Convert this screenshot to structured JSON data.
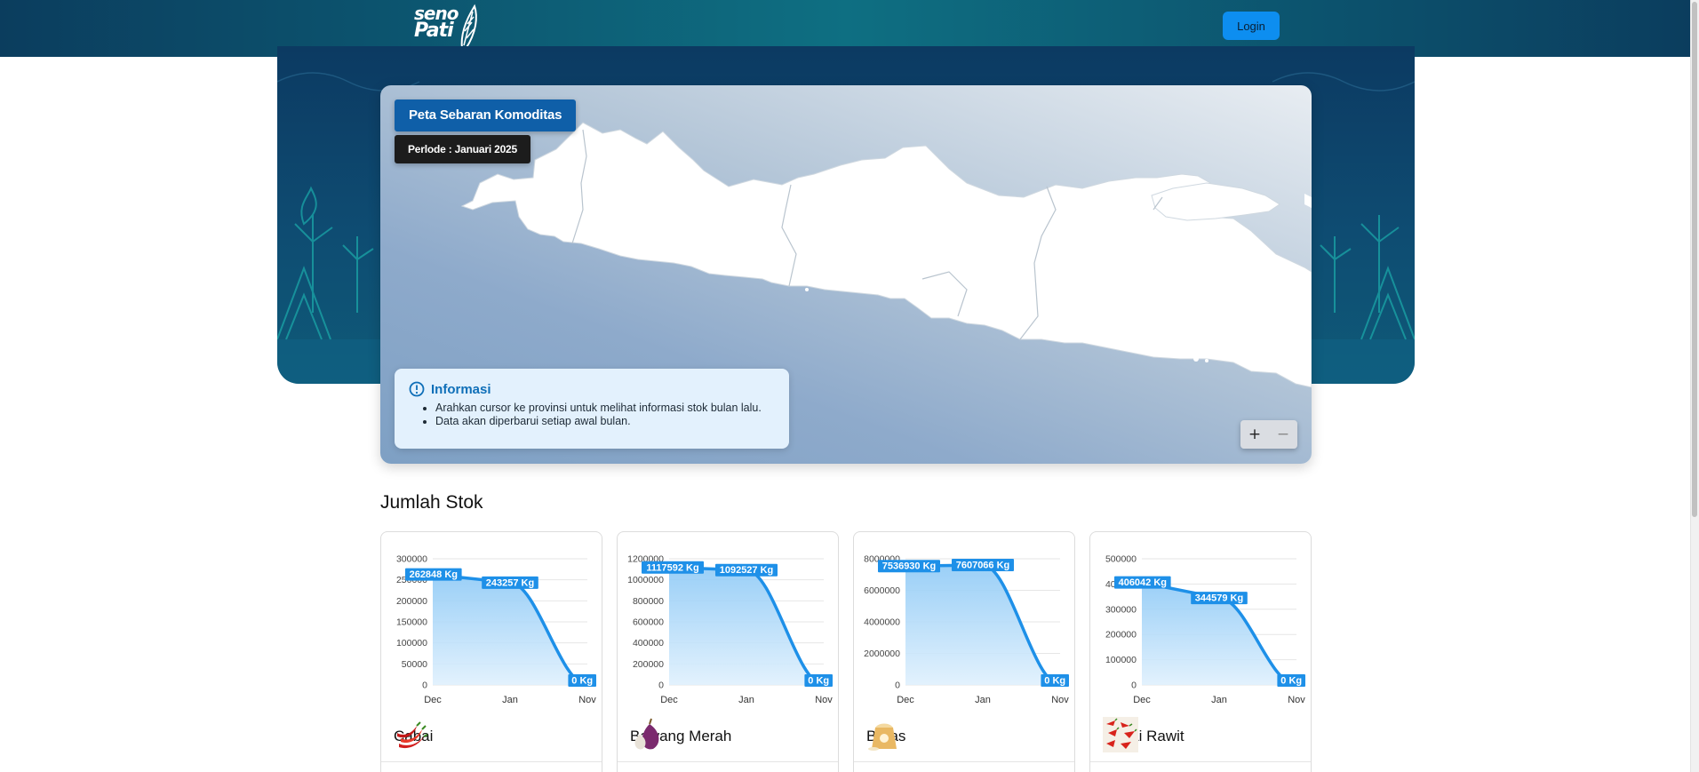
{
  "header": {
    "logo_line1": "seno",
    "logo_line2": "Pati",
    "login_label": "Login"
  },
  "map": {
    "title": "Peta Sebaran Komoditas",
    "period": "Perlode : Januari 2025",
    "info": {
      "title": "Informasi",
      "items": [
        "Arahkan cursor ke provinsi untuk melihat informasi stok bulan lalu.",
        "Data akan diperbarui setiap awal bulan."
      ]
    },
    "zoom_in": "+",
    "zoom_out": "−"
  },
  "stock": {
    "title": "Jumlah Stok",
    "unit": "Kg"
  },
  "chart_data": [
    {
      "type": "area",
      "name": "Cabai",
      "categories": [
        "Dec",
        "Jan",
        "Nov"
      ],
      "values": [
        262848,
        243257,
        0
      ],
      "data_labels": [
        "262848 Kg",
        "243257 Kg",
        "0 Kg"
      ],
      "ylim": [
        0,
        300000
      ],
      "yticks": [
        0,
        50000,
        100000,
        150000,
        200000,
        250000,
        300000
      ],
      "grid": true,
      "color": "#1e90e8"
    },
    {
      "type": "area",
      "name": "Bawang Merah",
      "categories": [
        "Dec",
        "Jan",
        "Nov"
      ],
      "values": [
        1117592,
        1092527,
        0
      ],
      "data_labels": [
        "1117592 Kg",
        "1092527 Kg",
        "0 Kg"
      ],
      "ylim": [
        0,
        1200000
      ],
      "yticks": [
        0,
        200000,
        400000,
        600000,
        800000,
        1000000,
        1200000
      ],
      "grid": true,
      "color": "#1e90e8"
    },
    {
      "type": "area",
      "name": "Beras",
      "categories": [
        "Dec",
        "Jan",
        "Nov"
      ],
      "values": [
        7536930,
        7607066,
        0
      ],
      "data_labels": [
        "7536930 Kg",
        "7607066 Kg",
        "0 Kg"
      ],
      "ylim": [
        0,
        8000000
      ],
      "yticks": [
        0,
        2000000,
        4000000,
        6000000,
        8000000
      ],
      "grid": true,
      "color": "#1e90e8"
    },
    {
      "type": "area",
      "name": "Cabai Rawit",
      "categories": [
        "Dec",
        "Jan",
        "Nov"
      ],
      "values": [
        406042,
        344579,
        0
      ],
      "data_labels": [
        "406042 Kg",
        "344579 Kg",
        "0 Kg"
      ],
      "ylim": [
        0,
        500000
      ],
      "yticks": [
        0,
        100000,
        200000,
        300000,
        400000,
        500000
      ],
      "grid": true,
      "color": "#1e90e8"
    }
  ],
  "colors": {
    "accent": "#0d8ef0",
    "title_badge": "#0f5fa8",
    "period_badge": "#1c1c1c",
    "series": "#1e90e8"
  },
  "icons": [
    "chili-icon",
    "shallot-icon",
    "rice-sack-icon",
    "bird-eye-chili-icon"
  ]
}
